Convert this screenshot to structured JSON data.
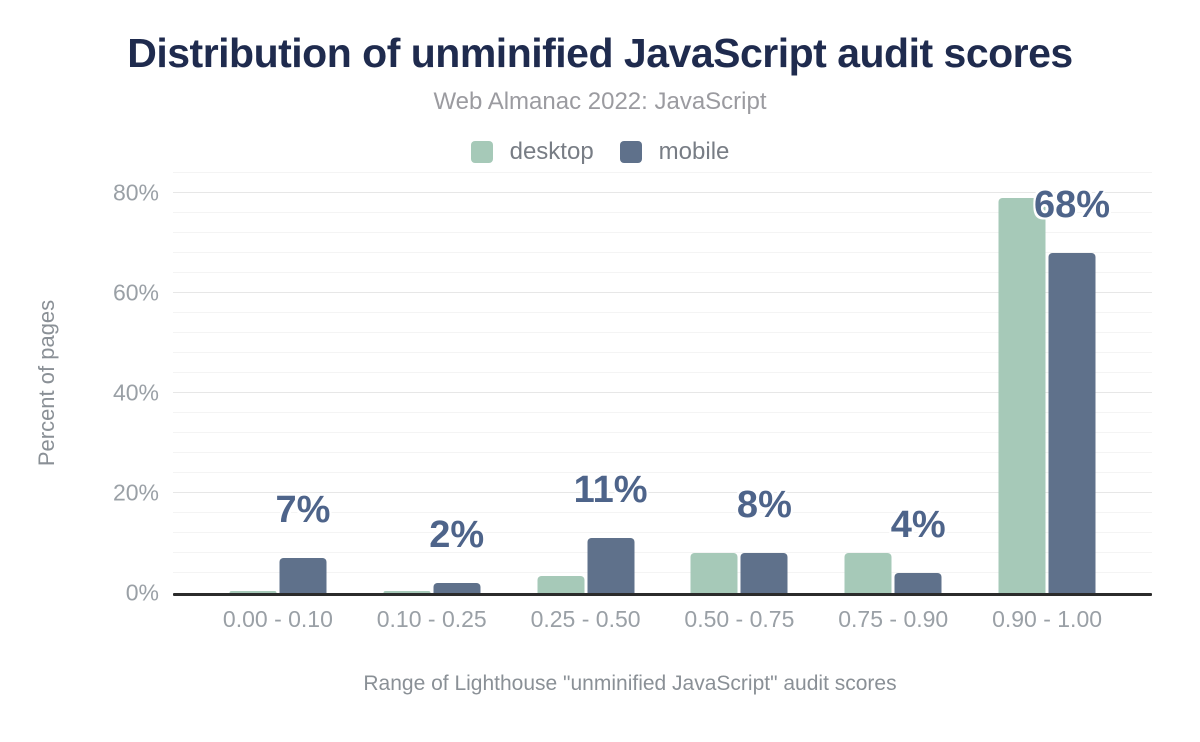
{
  "header": {
    "title": "Distribution of unminified JavaScript audit scores",
    "subtitle": "Web Almanac 2022: JavaScript"
  },
  "chart_data": {
    "type": "bar",
    "title": "Distribution of unminified JavaScript audit scores",
    "subtitle": "Web Almanac 2022: JavaScript",
    "categories": [
      "0.00 - 0.10",
      "0.10 - 0.25",
      "0.25 - 0.50",
      "0.50 - 0.75",
      "0.75 - 0.90",
      "0.90 - 1.00"
    ],
    "series": [
      {
        "name": "desktop",
        "color": "#a6c9b8",
        "values": [
          0.2,
          0.3,
          3.5,
          8,
          8,
          79
        ],
        "labels": null
      },
      {
        "name": "mobile",
        "color": "#5f718b",
        "values": [
          7,
          2,
          11,
          8,
          4,
          68
        ],
        "labels": [
          "7%",
          "2%",
          "11%",
          "8%",
          "4%",
          "68%"
        ]
      }
    ],
    "xlabel": "Range of Lighthouse \"unminified JavaScript\" audit scores",
    "ylabel": "Percent of pages",
    "ylim": [
      0,
      84
    ],
    "yticks": [
      0,
      20,
      40,
      60,
      80
    ],
    "ytick_labels": [
      "0%",
      "20%",
      "40%",
      "60%",
      "80%"
    ],
    "minor_grid_step": 4,
    "major_grid_step": 20,
    "grid": true,
    "legend_position": "top"
  },
  "colors": {
    "title": "#1f2b4e",
    "subtitle": "#9b9ba0",
    "axis_text": "#9aa0a6",
    "axis_title": "#8a9096",
    "data_label": "#4e648a",
    "desktop": "#a6c9b8",
    "mobile": "#5f718b",
    "major_grid": "#e7e7e7",
    "minor_grid": "#f4f4f4",
    "axis_line": "#2b2b2b"
  }
}
